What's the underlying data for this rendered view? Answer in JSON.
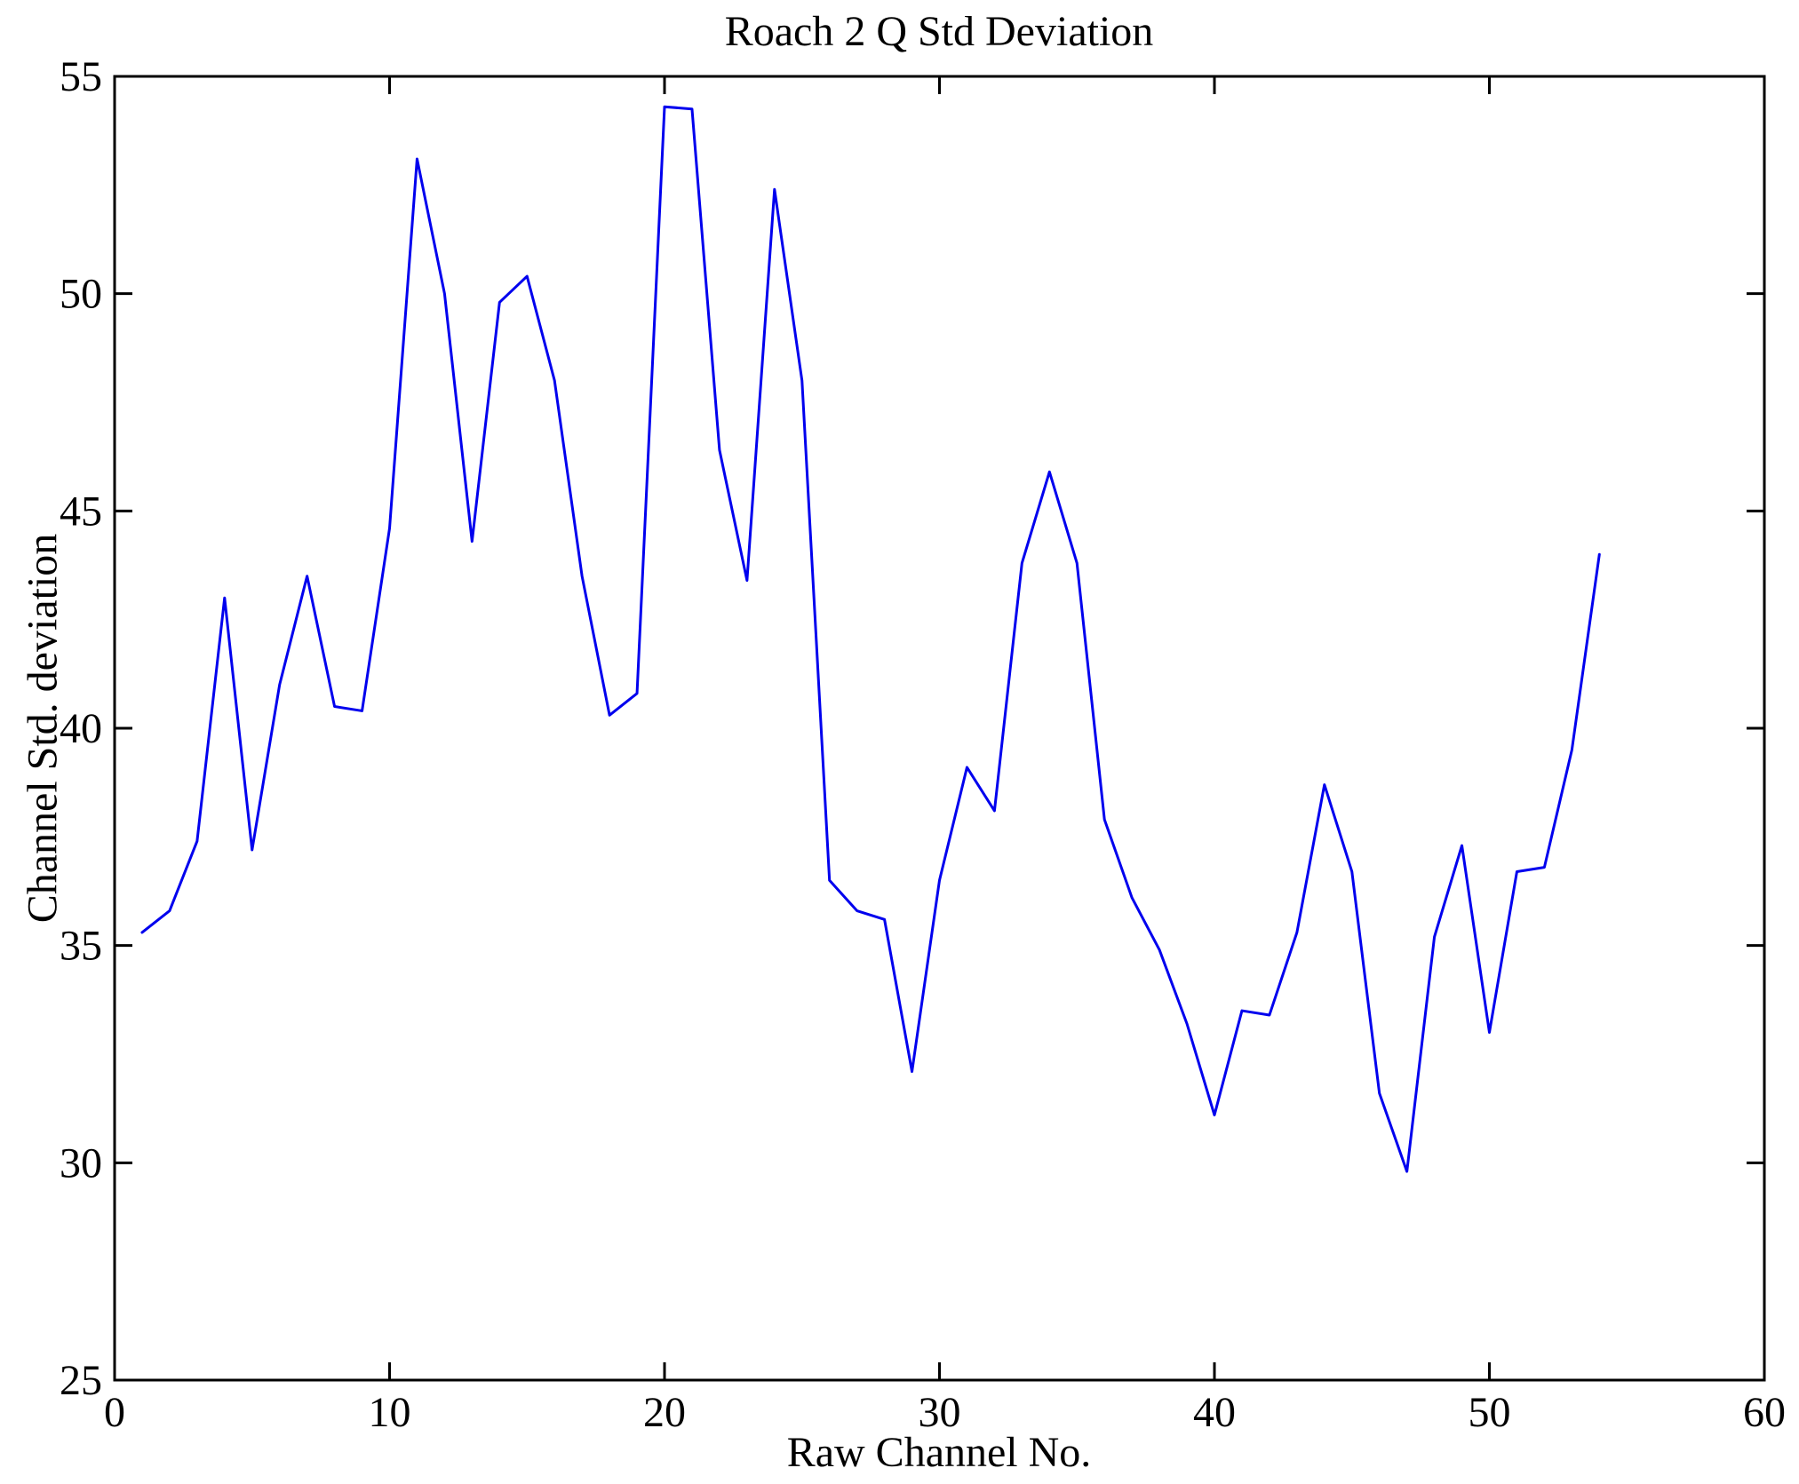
{
  "title": "Roach 2 Q Std Deviation",
  "chart_data": {
    "type": "line",
    "title": "Roach 2 Q Std Deviation",
    "xlabel": "Raw Channel No.",
    "ylabel": "Channel Std. deviation",
    "xlim": [
      0,
      60
    ],
    "ylim": [
      25,
      55
    ],
    "x_ticks": [
      0,
      10,
      20,
      30,
      40,
      50,
      60
    ],
    "y_ticks": [
      25,
      30,
      35,
      40,
      45,
      50,
      55
    ],
    "grid": false,
    "legend": null,
    "line_color": "#0000ee",
    "axis_color": "#000000",
    "x": [
      1,
      2,
      3,
      4,
      5,
      6,
      7,
      8,
      9,
      10,
      11,
      12,
      13,
      14,
      15,
      16,
      17,
      18,
      19,
      20,
      21,
      22,
      23,
      24,
      25,
      26,
      27,
      28,
      29,
      30,
      31,
      32,
      33,
      34,
      35,
      36,
      37,
      38,
      39,
      40,
      41,
      42,
      43,
      44,
      45,
      46,
      47,
      48,
      49,
      50,
      51,
      52,
      53,
      54
    ],
    "values": [
      35.3,
      35.8,
      37.4,
      43.0,
      37.2,
      41.0,
      43.5,
      40.5,
      40.4,
      44.6,
      53.1,
      50.0,
      44.3,
      49.8,
      50.4,
      48.0,
      43.5,
      40.3,
      40.8,
      54.3,
      54.25,
      46.4,
      43.4,
      52.4,
      48.0,
      36.5,
      35.8,
      35.6,
      32.1,
      36.5,
      39.1,
      38.1,
      43.8,
      45.9,
      43.8,
      37.9,
      36.1,
      34.9,
      33.2,
      31.1,
      33.5,
      33.4,
      35.3,
      38.7,
      36.7,
      31.6,
      29.8,
      35.2,
      37.3,
      33.0,
      36.7,
      36.8,
      39.5,
      44.0
    ]
  }
}
